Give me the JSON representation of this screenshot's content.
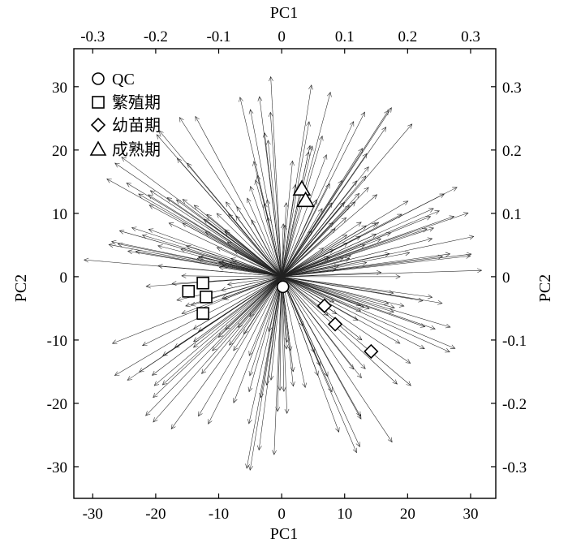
{
  "chart_data": {
    "type": "biplot",
    "title": "",
    "axes": {
      "bottom": {
        "label": "PC1",
        "range": [
          -33,
          34
        ],
        "ticks": [
          "-30",
          "-20",
          "-10",
          "0",
          "10",
          "20",
          "30"
        ],
        "tick_values": [
          -30,
          -20,
          -10,
          0,
          10,
          20,
          30
        ]
      },
      "left": {
        "label": "PC2",
        "range": [
          -35,
          36
        ],
        "ticks": [
          "-30",
          "-20",
          "-10",
          "0",
          "10",
          "20",
          "30"
        ],
        "tick_values": [
          -30,
          -20,
          -10,
          0,
          10,
          20,
          30
        ]
      },
      "top": {
        "label": "PC1",
        "range": [
          -0.33,
          0.34
        ],
        "ticks": [
          "-0.3",
          "-0.2",
          "-0.1",
          "0",
          "0.1",
          "0.2",
          "0.3"
        ],
        "tick_values": [
          -0.3,
          -0.2,
          -0.1,
          0,
          0.1,
          0.2,
          0.3
        ]
      },
      "right": {
        "label": "PC2",
        "range": [
          -0.35,
          0.36
        ],
        "ticks": [
          "0.3",
          "0.2",
          "0.1",
          "0",
          "-0.1",
          "-0.2",
          "-0.3"
        ],
        "tick_values": [
          0.3,
          0.2,
          0.1,
          0,
          -0.1,
          -0.2,
          -0.3
        ]
      }
    },
    "grid": false,
    "legend": {
      "placement": "top-left",
      "entries": [
        {
          "marker": "circle",
          "label": "QC"
        },
        {
          "marker": "square",
          "label": "繁殖期"
        },
        {
          "marker": "diamond",
          "label": "幼苗期"
        },
        {
          "marker": "triangle",
          "label": "成熟期"
        }
      ]
    },
    "series": [
      {
        "name": "QC",
        "marker": "circle",
        "points": [
          [
            0.2,
            -1.6
          ]
        ]
      },
      {
        "name": "繁殖期",
        "marker": "square",
        "points": [
          [
            -12.5,
            -1.0
          ],
          [
            -14.8,
            -2.3
          ],
          [
            -12.0,
            -3.2
          ],
          [
            -12.5,
            -5.8
          ]
        ]
      },
      {
        "name": "幼苗期",
        "marker": "diamond",
        "points": [
          [
            6.8,
            -4.6
          ],
          [
            8.5,
            -7.5
          ],
          [
            14.2,
            -11.8
          ]
        ]
      },
      {
        "name": "成熟期",
        "marker": "triangle",
        "points": [
          [
            3.2,
            13.8
          ],
          [
            3.8,
            12.0
          ]
        ]
      }
    ],
    "loadings": {
      "description": "dense fan of loading arrows from origin (top-axis/right-axis scale)",
      "count": 260,
      "direction_bands_deg": [
        [
          20,
          35
        ],
        [
          40,
          60
        ],
        [
          60,
          100
        ],
        [
          100,
          140
        ],
        [
          140,
          160
        ],
        [
          160,
          175
        ],
        [
          175,
          215
        ],
        [
          215,
          250
        ],
        [
          250,
          290
        ],
        [
          290,
          330
        ],
        [
          330,
          355
        ],
        [
          0,
          20
        ]
      ],
      "radius_range": [
        0.08,
        0.32
      ]
    }
  }
}
